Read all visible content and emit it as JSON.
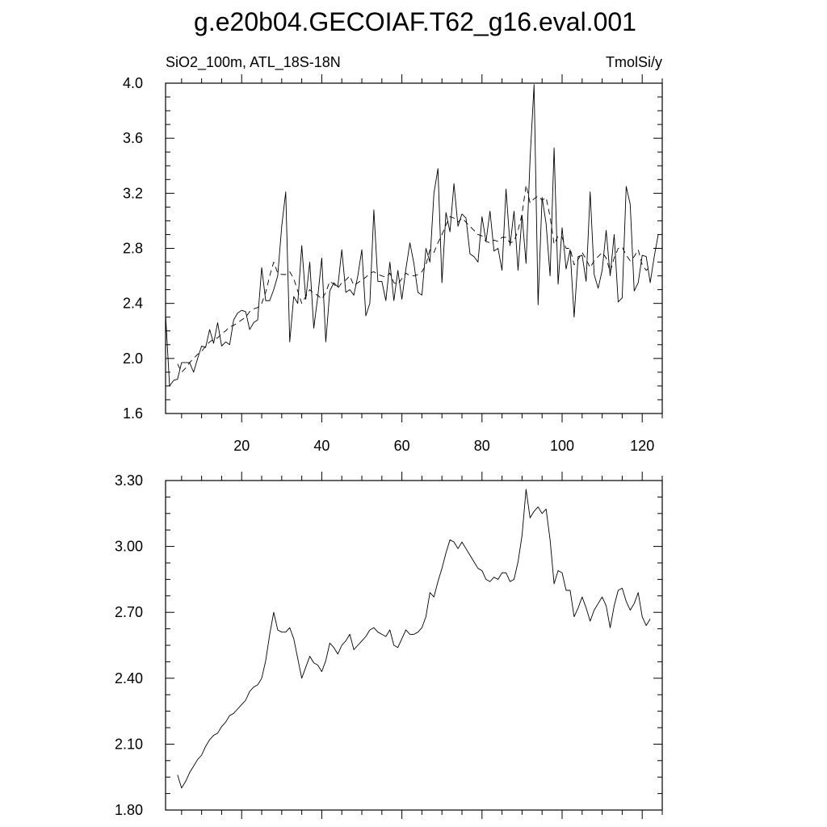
{
  "title": "g.e20b04.GECOIAF.T62_g16.eval.001",
  "chart_data": [
    {
      "type": "line",
      "left_label": "SiO2_100m, ATL_18S-18N",
      "right_label": "TmolSi/y",
      "xlim": [
        1,
        125
      ],
      "ylim": [
        1.6,
        4.0
      ],
      "x_ticks": [
        20,
        40,
        60,
        80,
        100,
        120
      ],
      "x_tick_labels": [
        "20",
        "40",
        "60",
        "80",
        "100",
        "120"
      ],
      "y_ticks": [
        1.6,
        2.0,
        2.4,
        2.8,
        3.2,
        3.6,
        4.0
      ],
      "y_tick_labels": [
        "1.6",
        "2.0",
        "2.4",
        "2.8",
        "3.2",
        "3.6",
        "4.0"
      ],
      "series": [
        {
          "style": "solid",
          "x_start": 1,
          "values": [
            2.32,
            1.8,
            1.84,
            1.85,
            1.97,
            1.97,
            1.97,
            1.9,
            2.0,
            2.09,
            2.08,
            2.21,
            2.11,
            2.26,
            2.09,
            2.12,
            2.1,
            2.28,
            2.33,
            2.35,
            2.34,
            2.21,
            2.26,
            2.28,
            2.66,
            2.42,
            2.42,
            2.5,
            2.6,
            2.96,
            3.21,
            2.12,
            2.45,
            2.4,
            2.82,
            2.43,
            2.7,
            2.22,
            2.45,
            2.73,
            2.12,
            2.49,
            2.55,
            2.52,
            2.79,
            2.48,
            2.5,
            2.46,
            2.6,
            2.79,
            2.31,
            2.4,
            3.08,
            2.56,
            2.56,
            2.42,
            2.7,
            2.42,
            2.64,
            2.43,
            2.65,
            2.84,
            2.69,
            2.48,
            2.46,
            2.8,
            2.7,
            3.2,
            3.38,
            2.55,
            3.06,
            2.92,
            3.27,
            2.96,
            3.05,
            3.02,
            2.76,
            2.74,
            2.7,
            3.03,
            2.85,
            3.07,
            2.78,
            2.8,
            2.64,
            3.23,
            2.82,
            3.07,
            2.64,
            3.04,
            2.69,
            3.45,
            3.99,
            2.39,
            3.17,
            2.98,
            2.6,
            3.53,
            2.54,
            2.95,
            2.65,
            2.79,
            2.3,
            2.74,
            2.75,
            2.56,
            3.21,
            2.61,
            2.51,
            2.64,
            2.93,
            2.6,
            2.9,
            2.41,
            2.44,
            3.25,
            3.12,
            2.49,
            2.55,
            2.75,
            2.74,
            2.55,
            2.74,
            2.9
          ]
        },
        {
          "style": "dashed",
          "x_start": 4,
          "values": [
            1.96,
            1.9,
            1.93,
            1.97,
            2.0,
            2.03,
            2.05,
            2.09,
            2.12,
            2.14,
            2.15,
            2.18,
            2.2,
            2.23,
            2.24,
            2.26,
            2.28,
            2.3,
            2.34,
            2.36,
            2.37,
            2.4,
            2.48,
            2.6,
            2.7,
            2.62,
            2.61,
            2.61,
            2.63,
            2.58,
            2.49,
            2.4,
            2.45,
            2.5,
            2.47,
            2.46,
            2.43,
            2.48,
            2.56,
            2.54,
            2.51,
            2.55,
            2.57,
            2.6,
            2.53,
            2.55,
            2.57,
            2.59,
            2.62,
            2.63,
            2.61,
            2.6,
            2.59,
            2.62,
            2.55,
            2.54,
            2.58,
            2.62,
            2.6,
            2.6,
            2.61,
            2.63,
            2.68,
            2.79,
            2.77,
            2.84,
            2.9,
            2.97,
            3.03,
            3.02,
            2.99,
            3.02,
            2.99,
            2.96,
            2.93,
            2.9,
            2.89,
            2.85,
            2.84,
            2.86,
            2.85,
            2.88,
            2.88,
            2.84,
            2.85,
            2.93,
            3.05,
            3.26,
            3.13,
            3.16,
            3.18,
            3.15,
            3.17,
            3.03,
            2.83,
            2.89,
            2.88,
            2.8,
            2.8,
            2.68,
            2.72,
            2.77,
            2.72,
            2.66,
            2.71,
            2.74,
            2.77,
            2.73,
            2.63,
            2.73,
            2.8,
            2.81,
            2.75,
            2.71,
            2.74,
            2.79,
            2.68,
            2.64,
            2.67
          ]
        }
      ]
    },
    {
      "type": "line",
      "xlim": [
        1,
        125
      ],
      "ylim": [
        1.8,
        3.3
      ],
      "x_ticks": [
        20,
        40,
        60,
        80,
        100,
        120
      ],
      "y_ticks": [
        1.8,
        2.1,
        2.4,
        2.7,
        3.0,
        3.3
      ],
      "y_tick_labels": [
        "1.80",
        "2.10",
        "2.40",
        "2.70",
        "3.00",
        "3.30"
      ],
      "series": [
        {
          "style": "solid",
          "x_start": 4,
          "values": [
            1.96,
            1.9,
            1.93,
            1.97,
            2.0,
            2.03,
            2.05,
            2.09,
            2.12,
            2.14,
            2.15,
            2.18,
            2.2,
            2.23,
            2.24,
            2.26,
            2.28,
            2.3,
            2.34,
            2.36,
            2.37,
            2.4,
            2.48,
            2.6,
            2.7,
            2.62,
            2.61,
            2.61,
            2.63,
            2.58,
            2.49,
            2.4,
            2.45,
            2.5,
            2.47,
            2.46,
            2.43,
            2.48,
            2.56,
            2.54,
            2.51,
            2.55,
            2.57,
            2.6,
            2.53,
            2.55,
            2.57,
            2.59,
            2.62,
            2.63,
            2.61,
            2.6,
            2.59,
            2.62,
            2.55,
            2.54,
            2.58,
            2.62,
            2.6,
            2.6,
            2.61,
            2.63,
            2.68,
            2.79,
            2.77,
            2.84,
            2.9,
            2.97,
            3.03,
            3.02,
            2.99,
            3.02,
            2.99,
            2.96,
            2.93,
            2.9,
            2.89,
            2.85,
            2.84,
            2.86,
            2.85,
            2.88,
            2.88,
            2.84,
            2.85,
            2.93,
            3.05,
            3.26,
            3.13,
            3.16,
            3.18,
            3.15,
            3.17,
            3.03,
            2.83,
            2.89,
            2.88,
            2.8,
            2.8,
            2.68,
            2.72,
            2.77,
            2.72,
            2.66,
            2.71,
            2.74,
            2.77,
            2.73,
            2.63,
            2.73,
            2.8,
            2.81,
            2.75,
            2.71,
            2.74,
            2.79,
            2.68,
            2.64,
            2.67
          ]
        }
      ]
    }
  ]
}
